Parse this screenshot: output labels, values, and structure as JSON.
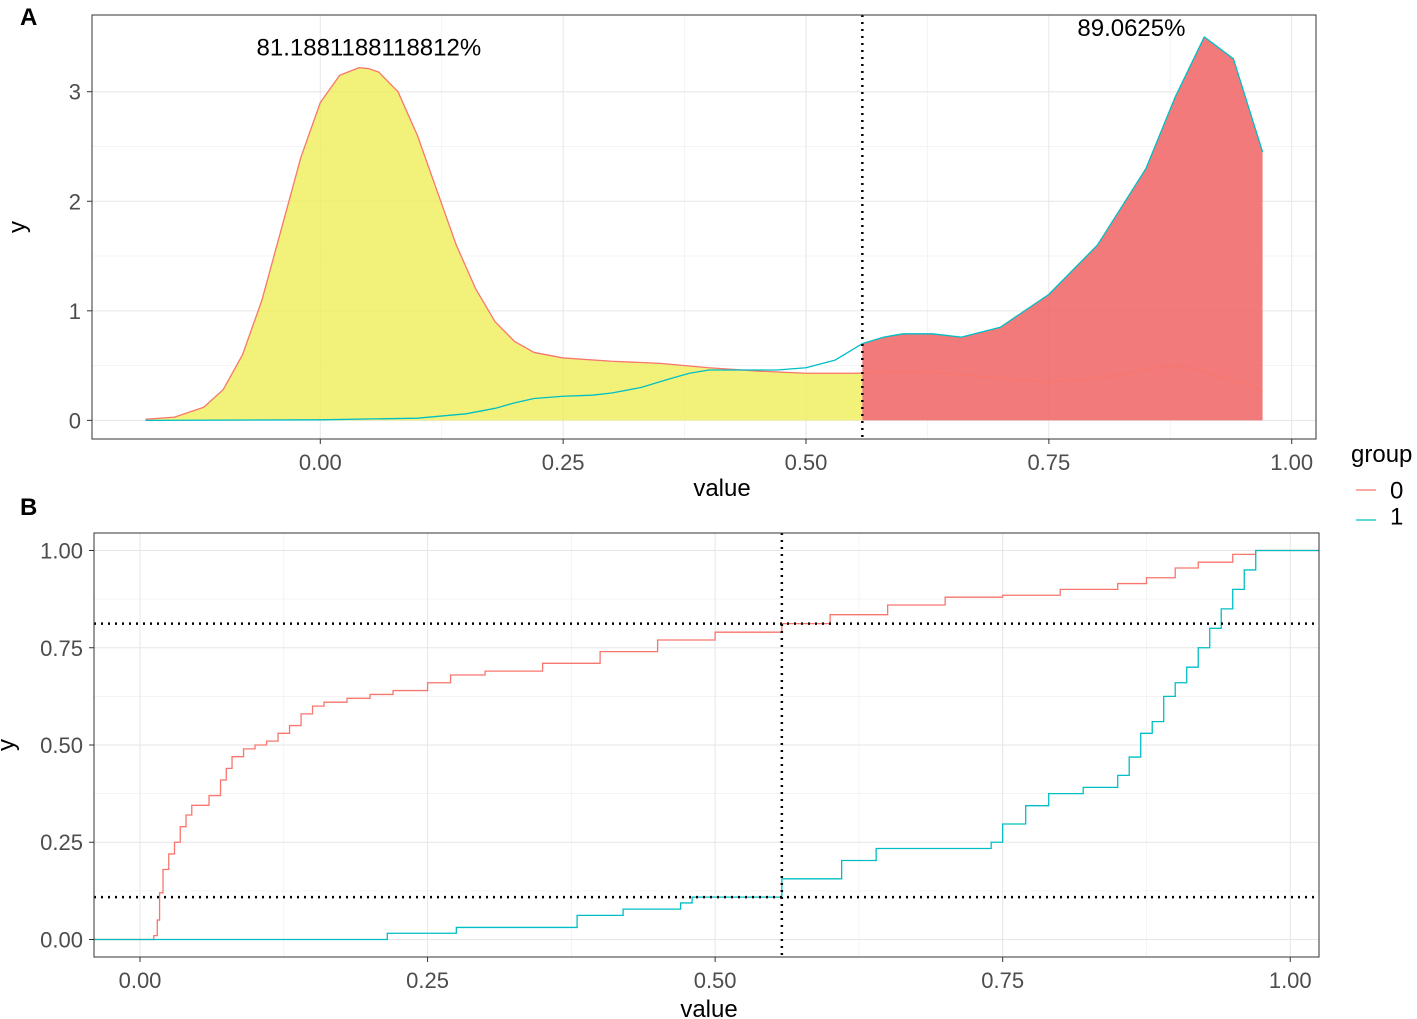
{
  "legend": {
    "title": "group",
    "items": [
      {
        "label": "0",
        "color": "#F8766D"
      },
      {
        "label": "1",
        "color": "#00BFC4"
      }
    ]
  },
  "chart_data": [
    {
      "panel": "A",
      "type": "area",
      "xlabel": "value",
      "ylabel": "y",
      "xlim": [
        -0.235,
        1.025
      ],
      "ylim": [
        -0.17,
        3.7
      ],
      "xticks": [
        0.0,
        0.25,
        0.5,
        0.75,
        1.0
      ],
      "xtick_labels": [
        "0.00",
        "0.25",
        "0.50",
        "0.75",
        "1.00"
      ],
      "yticks": [
        0,
        1,
        2,
        3
      ],
      "ytick_labels": [
        "0",
        "1",
        "2",
        "3"
      ],
      "grid": true,
      "threshold_x": 0.558,
      "fill_colors": {
        "left": "#EEEE55",
        "right": "#F06868"
      },
      "annotations": [
        {
          "text": "81.1881188118812%",
          "x": 0.05,
          "y": 3.33
        },
        {
          "text": "89.0625%",
          "x": 0.835,
          "y": 3.51
        }
      ],
      "series": [
        {
          "name": "0",
          "color": "#F8766D",
          "x": [
            -0.18,
            -0.15,
            -0.12,
            -0.1,
            -0.08,
            -0.06,
            -0.04,
            -0.02,
            0.0,
            0.02,
            0.04,
            0.05,
            0.06,
            0.08,
            0.1,
            0.12,
            0.14,
            0.16,
            0.18,
            0.2,
            0.22,
            0.25,
            0.3,
            0.35,
            0.4,
            0.45,
            0.5,
            0.55,
            0.6,
            0.65,
            0.7,
            0.75,
            0.8,
            0.85,
            0.875,
            0.9,
            0.95,
            0.97
          ],
          "y": [
            0.01,
            0.03,
            0.12,
            0.28,
            0.6,
            1.1,
            1.75,
            2.4,
            2.9,
            3.15,
            3.22,
            3.21,
            3.18,
            3.0,
            2.6,
            2.1,
            1.6,
            1.2,
            0.9,
            0.72,
            0.62,
            0.57,
            0.54,
            0.52,
            0.48,
            0.45,
            0.43,
            0.43,
            0.44,
            0.43,
            0.38,
            0.35,
            0.38,
            0.46,
            0.5,
            0.47,
            0.34,
            0.26
          ]
        },
        {
          "name": "1",
          "color": "#00BFC4",
          "x": [
            -0.18,
            0.0,
            0.1,
            0.15,
            0.18,
            0.2,
            0.22,
            0.25,
            0.28,
            0.3,
            0.33,
            0.36,
            0.38,
            0.4,
            0.43,
            0.47,
            0.5,
            0.53,
            0.558,
            0.58,
            0.6,
            0.63,
            0.66,
            0.7,
            0.75,
            0.8,
            0.85,
            0.88,
            0.91,
            0.94,
            0.97
          ],
          "y": [
            0.0,
            0.005,
            0.02,
            0.06,
            0.11,
            0.16,
            0.2,
            0.22,
            0.23,
            0.25,
            0.3,
            0.38,
            0.43,
            0.46,
            0.46,
            0.46,
            0.48,
            0.55,
            0.7,
            0.76,
            0.79,
            0.79,
            0.76,
            0.85,
            1.15,
            1.6,
            2.3,
            2.95,
            3.5,
            3.3,
            2.45
          ]
        }
      ]
    },
    {
      "panel": "B",
      "type": "line",
      "step": true,
      "xlabel": "value",
      "ylabel": "y",
      "xlim": [
        -0.04,
        1.025
      ],
      "ylim": [
        -0.045,
        1.045
      ],
      "xticks": [
        0.0,
        0.25,
        0.5,
        0.75,
        1.0
      ],
      "xtick_labels": [
        "0.00",
        "0.25",
        "0.50",
        "0.75",
        "1.00"
      ],
      "yticks": [
        0.0,
        0.25,
        0.5,
        0.75,
        1.0
      ],
      "ytick_labels": [
        "0.00",
        "0.25",
        "0.50",
        "0.75",
        "1.00"
      ],
      "grid": true,
      "threshold_x": 0.558,
      "threshold_y": [
        0.812,
        0.109
      ],
      "series": [
        {
          "name": "0",
          "color": "#F8766D",
          "x": [
            -0.04,
            0.012,
            0.015,
            0.017,
            0.02,
            0.025,
            0.03,
            0.035,
            0.04,
            0.045,
            0.05,
            0.06,
            0.07,
            0.075,
            0.08,
            0.09,
            0.1,
            0.11,
            0.12,
            0.13,
            0.14,
            0.15,
            0.16,
            0.18,
            0.2,
            0.22,
            0.25,
            0.27,
            0.3,
            0.35,
            0.4,
            0.45,
            0.5,
            0.558,
            0.6,
            0.65,
            0.7,
            0.75,
            0.8,
            0.85,
            0.875,
            0.9,
            0.92,
            0.95,
            0.97,
            1.025
          ],
          "y": [
            0.0,
            0.01,
            0.05,
            0.12,
            0.18,
            0.22,
            0.25,
            0.29,
            0.32,
            0.345,
            0.345,
            0.37,
            0.41,
            0.44,
            0.47,
            0.49,
            0.5,
            0.51,
            0.53,
            0.55,
            0.58,
            0.6,
            0.61,
            0.62,
            0.63,
            0.64,
            0.66,
            0.68,
            0.69,
            0.71,
            0.74,
            0.77,
            0.79,
            0.812,
            0.835,
            0.86,
            0.88,
            0.885,
            0.9,
            0.915,
            0.93,
            0.955,
            0.97,
            0.99,
            1.0,
            1.0
          ]
        },
        {
          "name": "1",
          "color": "#00BFC4",
          "x": [
            -0.04,
            0.215,
            0.275,
            0.38,
            0.42,
            0.47,
            0.48,
            0.5,
            0.558,
            0.61,
            0.64,
            0.7,
            0.74,
            0.75,
            0.77,
            0.79,
            0.82,
            0.85,
            0.86,
            0.87,
            0.88,
            0.89,
            0.9,
            0.91,
            0.92,
            0.93,
            0.94,
            0.95,
            0.96,
            0.97,
            1.025
          ],
          "y": [
            0.0,
            0.016,
            0.031,
            0.062,
            0.078,
            0.094,
            0.109,
            0.109,
            0.156,
            0.203,
            0.234,
            0.234,
            0.25,
            0.297,
            0.344,
            0.375,
            0.391,
            0.422,
            0.469,
            0.53,
            0.56,
            0.625,
            0.66,
            0.7,
            0.75,
            0.8,
            0.85,
            0.9,
            0.95,
            1.0,
            1.0
          ]
        }
      ]
    }
  ],
  "panel_labels": [
    "A",
    "B"
  ]
}
